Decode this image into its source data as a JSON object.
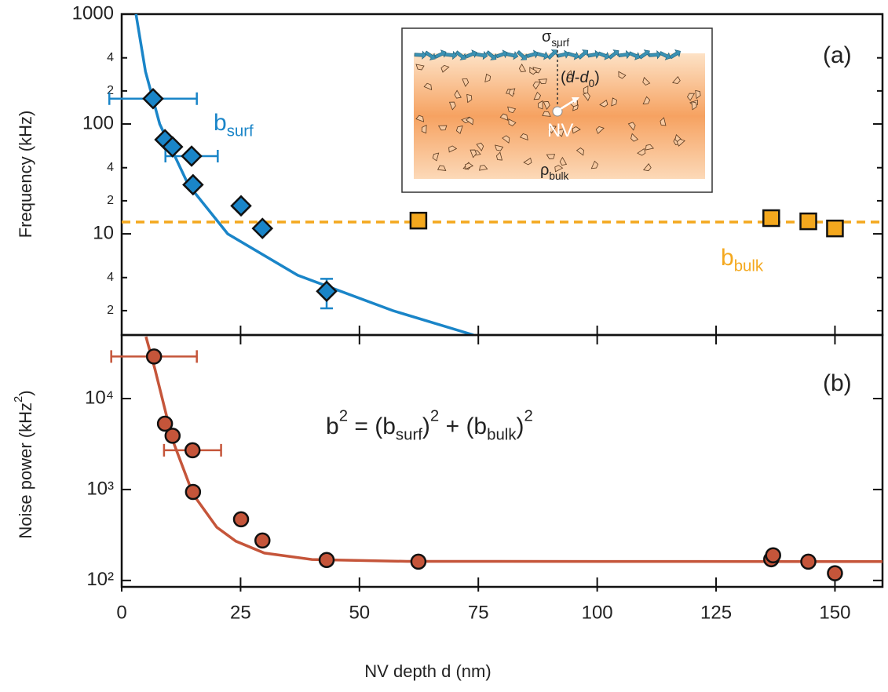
{
  "chart_data": [
    {
      "type": "scatter",
      "label": "(a)",
      "y_label": "Frequency (kHz)",
      "log_y": true,
      "xlim": [
        0,
        160
      ],
      "ylim": [
        1.2,
        1000
      ],
      "yticks": [
        2,
        4,
        10,
        {
          "value": 20,
          "label": "2"
        },
        {
          "value": 40,
          "label": "4"
        },
        100,
        {
          "value": 200,
          "label": "2"
        },
        {
          "value": 400,
          "label": "4"
        },
        1000
      ],
      "series": [
        {
          "marker": "none",
          "color": "#1a85c8",
          "x": [
            3,
            5,
            8,
            14,
            22.3,
            37,
            57,
            74
          ],
          "values": [
            1000,
            300,
            100,
            28,
            10,
            4.2,
            2.0,
            1.2
          ]
        },
        {
          "marker": "none",
          "dash": true,
          "color": "#f4a81e",
          "x": [
            0,
            160
          ],
          "values": [
            12.8,
            12.8
          ]
        },
        {
          "marker": "diamond",
          "color": "#1a85c8",
          "x": [
            6.6,
            9.1,
            10.7,
            14.7,
            15,
            25.1,
            29.6,
            43.1
          ],
          "values": [
            170,
            72,
            62,
            51,
            28,
            18,
            11.2,
            3.0
          ],
          "xerr": [
            9.2,
            null,
            null,
            5.5,
            null,
            null,
            null,
            null
          ],
          "yerr": [
            null,
            null,
            null,
            null,
            null,
            null,
            null,
            0.9
          ]
        },
        {
          "marker": "square",
          "color": "#f4a81e",
          "x": [
            62.4,
            136.6,
            144.4,
            150
          ],
          "values": [
            13.2,
            13.9,
            13.0,
            11.2
          ]
        }
      ],
      "annotations": [
        {
          "parts": [
            {
              "t": "b"
            },
            {
              "sub": "surf"
            }
          ],
          "color": "#1a85c8"
        },
        {
          "parts": [
            {
              "t": "b"
            },
            {
              "sub": "bulk"
            }
          ],
          "color": "#f4a81e"
        }
      ],
      "inset": {
        "sigma": [
          {
            "t": "σ"
          },
          {
            "sub": "surf"
          }
        ],
        "depth": [
          {
            "t": "("
          },
          {
            "i": "d"
          },
          {
            "t": "-"
          },
          {
            "i": "d"
          },
          {
            "sub": "0"
          },
          {
            "t": ")"
          }
        ],
        "nv": [
          {
            "t": "NV"
          }
        ],
        "rho": [
          {
            "t": "ρ"
          },
          {
            "sub": "bulk"
          }
        ]
      }
    },
    {
      "type": "scatter",
      "label": "(b)",
      "y_label": [
        {
          "t": "Noise power (kHz"
        },
        {
          "sup": "2"
        },
        {
          "t": ")"
        }
      ],
      "x_label": "NV depth d (nm)",
      "log_y": true,
      "xlim": [
        0,
        160
      ],
      "ylim": [
        85,
        50000
      ],
      "xticks": [
        0,
        25,
        50,
        75,
        100,
        125,
        150
      ],
      "yticks": [
        {
          "value": 100,
          "label": "10²"
        },
        {
          "value": 1000,
          "label": "10³"
        },
        {
          "value": 10000,
          "label": "10⁴"
        }
      ],
      "series": [
        {
          "marker": "none",
          "color": "#c5553a",
          "x": [
            5.1,
            7,
            10.7,
            15,
            20,
            24,
            30,
            40,
            60,
            160
          ],
          "values": [
            48000,
            21000,
            3500,
            890,
            385,
            270,
            200,
            170,
            162,
            161
          ]
        },
        {
          "marker": "circle",
          "color": "#c5553a",
          "x": [
            6.8,
            9.1,
            10.7,
            14.9,
            15,
            25.1,
            29.6,
            43.1,
            62.4,
            136.6,
            137,
            144.4,
            150
          ],
          "values": [
            29000,
            5300,
            3900,
            2700,
            940,
            470,
            275,
            168,
            161,
            171,
            189,
            161,
            120
          ],
          "xerr": [
            9,
            null,
            null,
            6,
            null,
            null,
            null,
            null,
            null,
            null,
            null,
            null,
            null
          ]
        }
      ],
      "annotations": [
        {
          "parts": [
            {
              "t": "b"
            },
            {
              "sup": "2"
            },
            {
              "t": " = (b"
            },
            {
              "sub": "surf"
            },
            {
              "t": ")"
            },
            {
              "sup": "2"
            },
            {
              "t": " + (b"
            },
            {
              "sub": "bulk"
            },
            {
              "t": ")"
            },
            {
              "sup": "2"
            }
          ],
          "color": "#222222"
        }
      ]
    }
  ]
}
